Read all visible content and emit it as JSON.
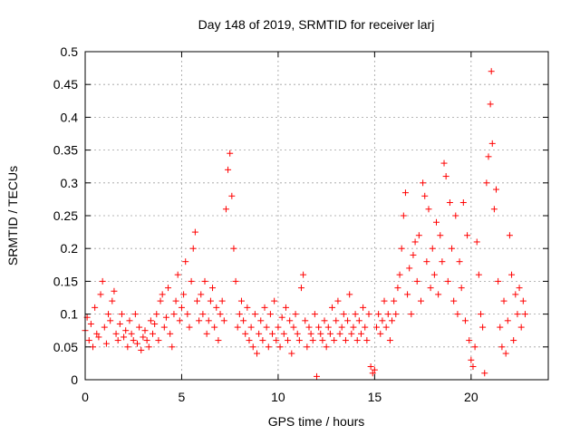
{
  "chart_data": {
    "type": "scatter",
    "title": "Day 148 of 2019, SRMTID for receiver larj",
    "xlabel": "GPS time / hours",
    "ylabel": "SRMTID / TECUs",
    "xlim": [
      0,
      24
    ],
    "ylim": [
      0,
      0.5
    ],
    "xticks": [
      0,
      5,
      10,
      15,
      20
    ],
    "xtick_labels": [
      "0",
      "5",
      "10",
      "15",
      "20"
    ],
    "yticks": [
      0,
      0.05,
      0.1,
      0.15,
      0.2,
      0.25,
      0.3,
      0.35,
      0.4,
      0.45,
      0.5
    ],
    "ytick_labels": [
      "0",
      "0.05",
      "0.1",
      "0.15",
      "0.2",
      "0.25",
      "0.3",
      "0.35",
      "0.4",
      "0.45",
      "0.5"
    ],
    "grid": true,
    "marker": "+",
    "color": "#ff0000",
    "series": [
      {
        "name": "SRMTID",
        "points": [
          [
            0.0,
            0.075
          ],
          [
            0.1,
            0.095
          ],
          [
            0.2,
            0.06
          ],
          [
            0.3,
            0.085
          ],
          [
            0.4,
            0.05
          ],
          [
            0.5,
            0.11
          ],
          [
            0.6,
            0.07
          ],
          [
            0.7,
            0.065
          ],
          [
            0.8,
            0.13
          ],
          [
            0.9,
            0.15
          ],
          [
            1.0,
            0.08
          ],
          [
            1.1,
            0.055
          ],
          [
            1.2,
            0.1
          ],
          [
            1.3,
            0.09
          ],
          [
            1.4,
            0.12
          ],
          [
            1.5,
            0.135
          ],
          [
            1.6,
            0.07
          ],
          [
            1.7,
            0.06
          ],
          [
            1.8,
            0.085
          ],
          [
            1.9,
            0.1
          ],
          [
            2.0,
            0.065
          ],
          [
            2.1,
            0.075
          ],
          [
            2.2,
            0.05
          ],
          [
            2.3,
            0.09
          ],
          [
            2.4,
            0.07
          ],
          [
            2.5,
            0.06
          ],
          [
            2.6,
            0.1
          ],
          [
            2.7,
            0.055
          ],
          [
            2.8,
            0.08
          ],
          [
            2.9,
            0.045
          ],
          [
            3.0,
            0.065
          ],
          [
            3.1,
            0.075
          ],
          [
            3.2,
            0.06
          ],
          [
            3.3,
            0.05
          ],
          [
            3.4,
            0.09
          ],
          [
            3.5,
            0.07
          ],
          [
            3.6,
            0.085
          ],
          [
            3.7,
            0.1
          ],
          [
            3.8,
            0.06
          ],
          [
            3.9,
            0.12
          ],
          [
            4.0,
            0.13
          ],
          [
            4.1,
            0.08
          ],
          [
            4.2,
            0.095
          ],
          [
            4.3,
            0.14
          ],
          [
            4.4,
            0.07
          ],
          [
            4.5,
            0.05
          ],
          [
            4.6,
            0.1
          ],
          [
            4.7,
            0.12
          ],
          [
            4.8,
            0.16
          ],
          [
            4.9,
            0.09
          ],
          [
            5.0,
            0.11
          ],
          [
            5.1,
            0.13
          ],
          [
            5.2,
            0.18
          ],
          [
            5.3,
            0.1
          ],
          [
            5.4,
            0.08
          ],
          [
            5.5,
            0.15
          ],
          [
            5.6,
            0.2
          ],
          [
            5.7,
            0.225
          ],
          [
            5.8,
            0.12
          ],
          [
            5.9,
            0.09
          ],
          [
            6.0,
            0.13
          ],
          [
            6.1,
            0.1
          ],
          [
            6.2,
            0.15
          ],
          [
            6.3,
            0.07
          ],
          [
            6.4,
            0.09
          ],
          [
            6.5,
            0.12
          ],
          [
            6.6,
            0.14
          ],
          [
            6.7,
            0.08
          ],
          [
            6.8,
            0.11
          ],
          [
            6.9,
            0.06
          ],
          [
            7.0,
            0.1
          ],
          [
            7.1,
            0.12
          ],
          [
            7.2,
            0.09
          ],
          [
            7.3,
            0.26
          ],
          [
            7.4,
            0.32
          ],
          [
            7.5,
            0.345
          ],
          [
            7.6,
            0.28
          ],
          [
            7.7,
            0.2
          ],
          [
            7.8,
            0.15
          ],
          [
            7.9,
            0.08
          ],
          [
            8.0,
            0.1
          ],
          [
            8.1,
            0.12
          ],
          [
            8.2,
            0.09
          ],
          [
            8.3,
            0.07
          ],
          [
            8.4,
            0.11
          ],
          [
            8.5,
            0.06
          ],
          [
            8.6,
            0.08
          ],
          [
            8.7,
            0.05
          ],
          [
            8.8,
            0.1
          ],
          [
            8.9,
            0.04
          ],
          [
            9.0,
            0.07
          ],
          [
            9.1,
            0.09
          ],
          [
            9.2,
            0.06
          ],
          [
            9.3,
            0.11
          ],
          [
            9.4,
            0.08
          ],
          [
            9.5,
            0.05
          ],
          [
            9.6,
            0.1
          ],
          [
            9.7,
            0.07
          ],
          [
            9.8,
            0.12
          ],
          [
            9.9,
            0.06
          ],
          [
            10.0,
            0.08
          ],
          [
            10.1,
            0.05
          ],
          [
            10.2,
            0.095
          ],
          [
            10.3,
            0.07
          ],
          [
            10.4,
            0.11
          ],
          [
            10.5,
            0.06
          ],
          [
            10.6,
            0.09
          ],
          [
            10.7,
            0.04
          ],
          [
            10.8,
            0.08
          ],
          [
            10.9,
            0.1
          ],
          [
            11.0,
            0.07
          ],
          [
            11.1,
            0.06
          ],
          [
            11.2,
            0.14
          ],
          [
            11.3,
            0.16
          ],
          [
            11.4,
            0.09
          ],
          [
            11.5,
            0.05
          ],
          [
            11.6,
            0.08
          ],
          [
            11.7,
            0.07
          ],
          [
            11.8,
            0.06
          ],
          [
            11.9,
            0.1
          ],
          [
            12.0,
            0.005
          ],
          [
            12.1,
            0.08
          ],
          [
            12.2,
            0.07
          ],
          [
            12.3,
            0.06
          ],
          [
            12.4,
            0.09
          ],
          [
            12.5,
            0.05
          ],
          [
            12.6,
            0.08
          ],
          [
            12.7,
            0.07
          ],
          [
            12.8,
            0.11
          ],
          [
            12.9,
            0.06
          ],
          [
            13.0,
            0.09
          ],
          [
            13.1,
            0.12
          ],
          [
            13.2,
            0.07
          ],
          [
            13.3,
            0.08
          ],
          [
            13.4,
            0.1
          ],
          [
            13.5,
            0.06
          ],
          [
            13.6,
            0.09
          ],
          [
            13.7,
            0.13
          ],
          [
            13.8,
            0.07
          ],
          [
            13.9,
            0.08
          ],
          [
            14.0,
            0.1
          ],
          [
            14.1,
            0.06
          ],
          [
            14.2,
            0.09
          ],
          [
            14.3,
            0.07
          ],
          [
            14.4,
            0.11
          ],
          [
            14.5,
            0.08
          ],
          [
            14.6,
            0.06
          ],
          [
            14.7,
            0.1
          ],
          [
            14.8,
            0.02
          ],
          [
            14.9,
            0.01
          ],
          [
            15.0,
            0.015
          ],
          [
            15.1,
            0.08
          ],
          [
            15.2,
            0.1
          ],
          [
            15.3,
            0.07
          ],
          [
            15.4,
            0.09
          ],
          [
            15.5,
            0.12
          ],
          [
            15.6,
            0.08
          ],
          [
            15.7,
            0.1
          ],
          [
            15.8,
            0.06
          ],
          [
            15.9,
            0.09
          ],
          [
            16.0,
            0.12
          ],
          [
            16.1,
            0.1
          ],
          [
            16.2,
            0.14
          ],
          [
            16.3,
            0.16
          ],
          [
            16.4,
            0.2
          ],
          [
            16.5,
            0.25
          ],
          [
            16.6,
            0.285
          ],
          [
            16.7,
            0.13
          ],
          [
            16.8,
            0.17
          ],
          [
            16.9,
            0.1
          ],
          [
            17.0,
            0.19
          ],
          [
            17.1,
            0.21
          ],
          [
            17.2,
            0.15
          ],
          [
            17.3,
            0.22
          ],
          [
            17.4,
            0.12
          ],
          [
            17.5,
            0.3
          ],
          [
            17.6,
            0.28
          ],
          [
            17.7,
            0.18
          ],
          [
            17.8,
            0.26
          ],
          [
            17.9,
            0.14
          ],
          [
            18.0,
            0.2
          ],
          [
            18.1,
            0.16
          ],
          [
            18.2,
            0.24
          ],
          [
            18.3,
            0.13
          ],
          [
            18.4,
            0.22
          ],
          [
            18.5,
            0.18
          ],
          [
            18.6,
            0.33
          ],
          [
            18.7,
            0.31
          ],
          [
            18.8,
            0.15
          ],
          [
            18.9,
            0.27
          ],
          [
            19.0,
            0.2
          ],
          [
            19.1,
            0.12
          ],
          [
            19.2,
            0.25
          ],
          [
            19.3,
            0.1
          ],
          [
            19.4,
            0.18
          ],
          [
            19.5,
            0.14
          ],
          [
            19.6,
            0.27
          ],
          [
            19.7,
            0.09
          ],
          [
            19.8,
            0.22
          ],
          [
            19.9,
            0.06
          ],
          [
            20.0,
            0.03
          ],
          [
            20.1,
            0.02
          ],
          [
            20.2,
            0.05
          ],
          [
            20.3,
            0.21
          ],
          [
            20.4,
            0.16
          ],
          [
            20.5,
            0.1
          ],
          [
            20.6,
            0.08
          ],
          [
            20.7,
            0.01
          ],
          [
            20.8,
            0.3
          ],
          [
            20.9,
            0.34
          ],
          [
            21.0,
            0.42
          ],
          [
            21.05,
            0.47
          ],
          [
            21.1,
            0.36
          ],
          [
            21.2,
            0.26
          ],
          [
            21.3,
            0.29
          ],
          [
            21.4,
            0.15
          ],
          [
            21.5,
            0.08
          ],
          [
            21.6,
            0.05
          ],
          [
            21.7,
            0.12
          ],
          [
            21.8,
            0.04
          ],
          [
            21.9,
            0.09
          ],
          [
            22.0,
            0.22
          ],
          [
            22.1,
            0.16
          ],
          [
            22.2,
            0.06
          ],
          [
            22.3,
            0.13
          ],
          [
            22.4,
            0.1
          ],
          [
            22.5,
            0.14
          ],
          [
            22.6,
            0.08
          ],
          [
            22.7,
            0.12
          ],
          [
            22.8,
            0.1
          ]
        ]
      }
    ]
  }
}
